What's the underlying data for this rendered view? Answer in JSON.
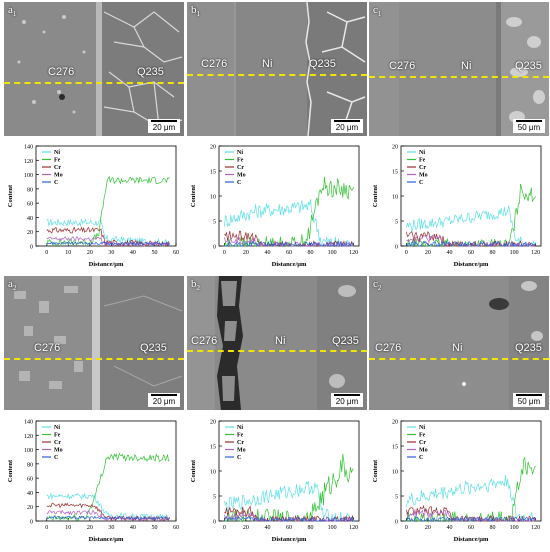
{
  "panels": [
    {
      "id": "a1",
      "letter": "a",
      "sub": "1",
      "left_label": "C276",
      "mid_label": "",
      "right_label": "Q235",
      "scale": "20 μm"
    },
    {
      "id": "b1",
      "letter": "b",
      "sub": "1",
      "left_label": "C276",
      "mid_label": "Ni",
      "right_label": "Q235",
      "scale": "20 μm"
    },
    {
      "id": "c1",
      "letter": "c",
      "sub": "1",
      "left_label": "C276",
      "mid_label": "Ni",
      "right_label": "Q235",
      "scale": "50 μm"
    },
    {
      "id": "a2",
      "letter": "a",
      "sub": "2",
      "left_label": "C276",
      "mid_label": "",
      "right_label": "Q235",
      "scale": "20 μm"
    },
    {
      "id": "b2",
      "letter": "b",
      "sub": "2",
      "left_label": "C276",
      "mid_label": "Ni",
      "right_label": "Q235",
      "scale": "20 μm"
    },
    {
      "id": "c2",
      "letter": "c",
      "sub": "2",
      "left_label": "C276",
      "mid_label": "Ni",
      "right_label": "Q235",
      "scale": "50 μm"
    }
  ],
  "chart_data": [
    {
      "id": "chart-a1",
      "type": "line",
      "ylabel": "Content",
      "xlabel": "Distance/μm",
      "xlim": [
        -5,
        60
      ],
      "xticks": [
        0,
        10,
        20,
        30,
        40,
        50,
        60
      ],
      "ylim": [
        0,
        140
      ],
      "yticks": [
        0,
        20,
        40,
        60,
        80,
        100,
        120,
        140
      ],
      "legend": [
        "Ni",
        "Fe",
        "Cr",
        "Mo",
        "C"
      ],
      "series": [
        {
          "name": "Ni",
          "color": "#5fe0e6",
          "profile": [
            [
              0,
              33
            ],
            [
              25,
              33
            ],
            [
              27,
              10
            ],
            [
              57,
              4
            ]
          ],
          "noise": 5
        },
        {
          "name": "Fe",
          "color": "#33c233",
          "profile": [
            [
              0,
              5
            ],
            [
              20,
              6
            ],
            [
              24,
              15
            ],
            [
              28,
              92
            ],
            [
              57,
              92
            ]
          ],
          "noise": 5
        },
        {
          "name": "Cr",
          "color": "#9b2b2b",
          "profile": [
            [
              0,
              22
            ],
            [
              25,
              22
            ],
            [
              27,
              5
            ],
            [
              57,
              3
            ]
          ],
          "noise": 4
        },
        {
          "name": "Mo",
          "color": "#b060c0",
          "profile": [
            [
              0,
              10
            ],
            [
              25,
              10
            ],
            [
              27,
              3
            ],
            [
              57,
              3
            ]
          ],
          "noise": 3
        },
        {
          "name": "C",
          "color": "#2a5fd8",
          "profile": [
            [
              0,
              4
            ],
            [
              57,
              3
            ]
          ],
          "noise": 2
        }
      ]
    },
    {
      "id": "chart-b1",
      "type": "line",
      "ylabel": "Content",
      "xlabel": "Distance/μm",
      "xlim": [
        -5,
        125
      ],
      "xticks": [
        0,
        20,
        40,
        60,
        80,
        100,
        120
      ],
      "ylim": [
        0,
        20
      ],
      "yticks": [
        0,
        5,
        10,
        15,
        20
      ],
      "legend": [
        "Ni",
        "Fe",
        "Cr",
        "Mo",
        "C"
      ],
      "series": [
        {
          "name": "Ni",
          "color": "#5fe0e6",
          "profile": [
            [
              0,
              5
            ],
            [
              30,
              7
            ],
            [
              80,
              8
            ],
            [
              90,
              1
            ],
            [
              120,
              0
            ]
          ],
          "noise": 1.5
        },
        {
          "name": "Fe",
          "color": "#33c233",
          "profile": [
            [
              0,
              0
            ],
            [
              70,
              0
            ],
            [
              78,
              2
            ],
            [
              90,
              12
            ],
            [
              120,
              11
            ]
          ],
          "noise": 2
        },
        {
          "name": "Cr",
          "color": "#9b2b2b",
          "profile": [
            [
              0,
              2
            ],
            [
              28,
              2
            ],
            [
              32,
              0
            ],
            [
              120,
              0
            ]
          ],
          "noise": 1
        },
        {
          "name": "Mo",
          "color": "#b060c0",
          "profile": [
            [
              0,
              1
            ],
            [
              28,
              1
            ],
            [
              32,
              0
            ],
            [
              120,
              0
            ]
          ],
          "noise": 0.8
        },
        {
          "name": "C",
          "color": "#2a5fd8",
          "profile": [
            [
              0,
              0.3
            ],
            [
              120,
              0.3
            ]
          ],
          "noise": 0.6
        }
      ]
    },
    {
      "id": "chart-c1",
      "type": "line",
      "ylabel": "Content",
      "xlabel": "Distance/μm",
      "xlim": [
        -5,
        125
      ],
      "xticks": [
        0,
        20,
        40,
        60,
        80,
        100,
        120
      ],
      "ylim": [
        0,
        20
      ],
      "yticks": [
        0,
        5,
        10,
        15,
        20
      ],
      "legend": [
        "Ni",
        "Fe",
        "Cr",
        "Mo",
        "C"
      ],
      "series": [
        {
          "name": "Ni",
          "color": "#5fe0e6",
          "profile": [
            [
              0,
              4
            ],
            [
              40,
              5
            ],
            [
              95,
              7
            ],
            [
              102,
              1
            ],
            [
              120,
              0
            ]
          ],
          "noise": 1.2
        },
        {
          "name": "Fe",
          "color": "#33c233",
          "profile": [
            [
              0,
              0
            ],
            [
              95,
              0
            ],
            [
              100,
              4
            ],
            [
              106,
              11
            ],
            [
              120,
              10
            ]
          ],
          "noise": 1.5
        },
        {
          "name": "Cr",
          "color": "#9b2b2b",
          "profile": [
            [
              0,
              2
            ],
            [
              32,
              2
            ],
            [
              36,
              0
            ],
            [
              120,
              0
            ]
          ],
          "noise": 1
        },
        {
          "name": "Mo",
          "color": "#b060c0",
          "profile": [
            [
              0,
              1.5
            ],
            [
              32,
              1.5
            ],
            [
              36,
              0
            ],
            [
              120,
              0
            ]
          ],
          "noise": 0.8
        },
        {
          "name": "C",
          "color": "#2a5fd8",
          "profile": [
            [
              0,
              0.3
            ],
            [
              120,
              0.3
            ]
          ],
          "noise": 0.6
        }
      ]
    },
    {
      "id": "chart-a2",
      "type": "line",
      "ylabel": "Content",
      "xlabel": "Distance/μm",
      "xlim": [
        -5,
        60
      ],
      "xticks": [
        0,
        10,
        20,
        30,
        40,
        50,
        60
      ],
      "ylim": [
        0,
        140
      ],
      "yticks": [
        0,
        20,
        40,
        60,
        80,
        100,
        120,
        140
      ],
      "legend": [
        "Ni",
        "Fe",
        "Cr",
        "Mo",
        "C"
      ],
      "series": [
        {
          "name": "Ni",
          "color": "#5fe0e6",
          "profile": [
            [
              0,
              35
            ],
            [
              22,
              35
            ],
            [
              28,
              8
            ],
            [
              57,
              5
            ]
          ],
          "noise": 4
        },
        {
          "name": "Fe",
          "color": "#33c233",
          "profile": [
            [
              0,
              3
            ],
            [
              18,
              5
            ],
            [
              22,
              30
            ],
            [
              28,
              90
            ],
            [
              57,
              88
            ]
          ],
          "noise": 5
        },
        {
          "name": "Cr",
          "color": "#9b2b2b",
          "profile": [
            [
              0,
              22
            ],
            [
              22,
              22
            ],
            [
              28,
              4
            ],
            [
              57,
              3
            ]
          ],
          "noise": 3
        },
        {
          "name": "Mo",
          "color": "#b060c0",
          "profile": [
            [
              0,
              12
            ],
            [
              22,
              12
            ],
            [
              28,
              3
            ],
            [
              57,
              3
            ]
          ],
          "noise": 3
        },
        {
          "name": "C",
          "color": "#2a5fd8",
          "profile": [
            [
              0,
              5
            ],
            [
              57,
              4
            ]
          ],
          "noise": 2
        }
      ]
    },
    {
      "id": "chart-b2",
      "type": "line",
      "ylabel": "Content",
      "xlabel": "Distance/μm",
      "xlim": [
        -5,
        125
      ],
      "xticks": [
        0,
        20,
        40,
        60,
        80,
        100,
        120
      ],
      "ylim": [
        0,
        20
      ],
      "yticks": [
        0,
        5,
        10,
        15,
        20
      ],
      "legend": [
        "Ni",
        "Fe",
        "Cr",
        "Mo",
        "C"
      ],
      "series": [
        {
          "name": "Ni",
          "color": "#5fe0e6",
          "profile": [
            [
              0,
              3
            ],
            [
              40,
              5
            ],
            [
              85,
              7
            ],
            [
              92,
              1
            ],
            [
              120,
              0
            ]
          ],
          "noise": 1.5
        },
        {
          "name": "Fe",
          "color": "#33c233",
          "profile": [
            [
              0,
              0
            ],
            [
              80,
              0
            ],
            [
              88,
              4
            ],
            [
              110,
              11
            ],
            [
              120,
              8
            ]
          ],
          "noise": 2.5
        },
        {
          "name": "Cr",
          "color": "#9b2b2b",
          "profile": [
            [
              0,
              2
            ],
            [
              25,
              2
            ],
            [
              30,
              0
            ],
            [
              120,
              0
            ]
          ],
          "noise": 1
        },
        {
          "name": "Mo",
          "color": "#b060c0",
          "profile": [
            [
              0,
              1
            ],
            [
              25,
              1
            ],
            [
              30,
              0
            ],
            [
              120,
              0
            ]
          ],
          "noise": 0.8
        },
        {
          "name": "C",
          "color": "#2a5fd8",
          "profile": [
            [
              0,
              0.3
            ],
            [
              120,
              0.3
            ]
          ],
          "noise": 0.5
        }
      ]
    },
    {
      "id": "chart-c2",
      "type": "line",
      "ylabel": "Content",
      "xlabel": "Distance/μm",
      "xlim": [
        -5,
        125
      ],
      "xticks": [
        0,
        20,
        40,
        60,
        80,
        100,
        120
      ],
      "ylim": [
        0,
        20
      ],
      "yticks": [
        0,
        5,
        10,
        15,
        20
      ],
      "legend": [
        "Ni",
        "Fe",
        "Cr",
        "Mo",
        "C"
      ],
      "series": [
        {
          "name": "Ni",
          "color": "#5fe0e6",
          "profile": [
            [
              0,
              4
            ],
            [
              40,
              6
            ],
            [
              95,
              8
            ],
            [
              102,
              1
            ],
            [
              120,
              0
            ]
          ],
          "noise": 1.5
        },
        {
          "name": "Fe",
          "color": "#33c233",
          "profile": [
            [
              0,
              0
            ],
            [
              97,
              0
            ],
            [
              102,
              5
            ],
            [
              108,
              11
            ],
            [
              120,
              10
            ]
          ],
          "noise": 2
        },
        {
          "name": "Cr",
          "color": "#9b2b2b",
          "profile": [
            [
              0,
              2
            ],
            [
              38,
              2
            ],
            [
              42,
              0
            ],
            [
              120,
              0
            ]
          ],
          "noise": 1
        },
        {
          "name": "Mo",
          "color": "#b060c0",
          "profile": [
            [
              0,
              1.5
            ],
            [
              38,
              1.5
            ],
            [
              42,
              0
            ],
            [
              120,
              0
            ]
          ],
          "noise": 0.8
        },
        {
          "name": "C",
          "color": "#2a5fd8",
          "profile": [
            [
              0,
              0.3
            ],
            [
              120,
              0.3
            ]
          ],
          "noise": 0.5
        }
      ]
    }
  ]
}
